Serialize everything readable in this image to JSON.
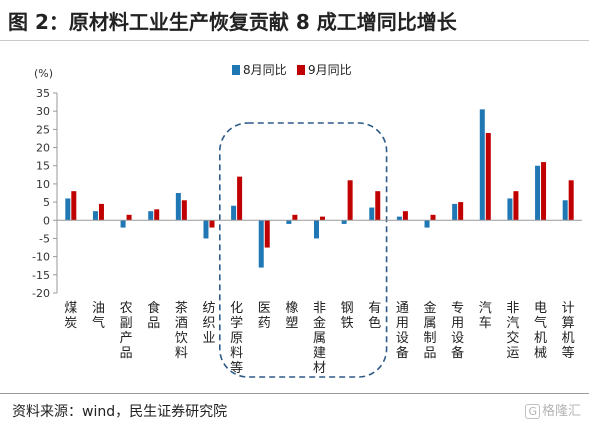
{
  "title": "图 2：原材料工业生产恢复贡献 8 成工增同比增长",
  "source": "资料来源：wind，民生证券研究院",
  "watermark": {
    "logo": "G",
    "text": "格隆汇"
  },
  "colors": {
    "aug": "#1f77b4",
    "sep": "#c00000",
    "box": "#2e5a88"
  },
  "chart_data": {
    "type": "bar",
    "unit_label": "(%)",
    "ylim": [
      -20,
      35
    ],
    "yticks": [
      -20,
      -15,
      -10,
      -5,
      0,
      5,
      10,
      15,
      20,
      25,
      30,
      35
    ],
    "grid": false,
    "legend_position": "top",
    "categories": [
      "煤炭",
      "油气",
      "农副产品",
      "食品",
      "茶酒饮料",
      "纺织业",
      "化学原料等",
      "医药",
      "橡塑",
      "非金属建材",
      "钢铁",
      "有色",
      "通用设备",
      "金属制品",
      "专用设备",
      "汽车",
      "非汽交运",
      "电气机械",
      "计算机等"
    ],
    "series": [
      {
        "name": "8月同比",
        "values": [
          6,
          2.5,
          -2,
          2.5,
          7.5,
          -5,
          4,
          -13,
          -1,
          -5,
          -1,
          3.5,
          1,
          -2,
          4.5,
          30.5,
          6,
          15,
          5.5
        ]
      },
      {
        "name": "9月同比",
        "values": [
          8,
          4.5,
          1.5,
          3,
          5.5,
          -2,
          12,
          -7.5,
          1.5,
          1,
          11,
          8,
          2.5,
          1.5,
          5,
          24,
          8,
          16,
          11
        ]
      }
    ]
  }
}
